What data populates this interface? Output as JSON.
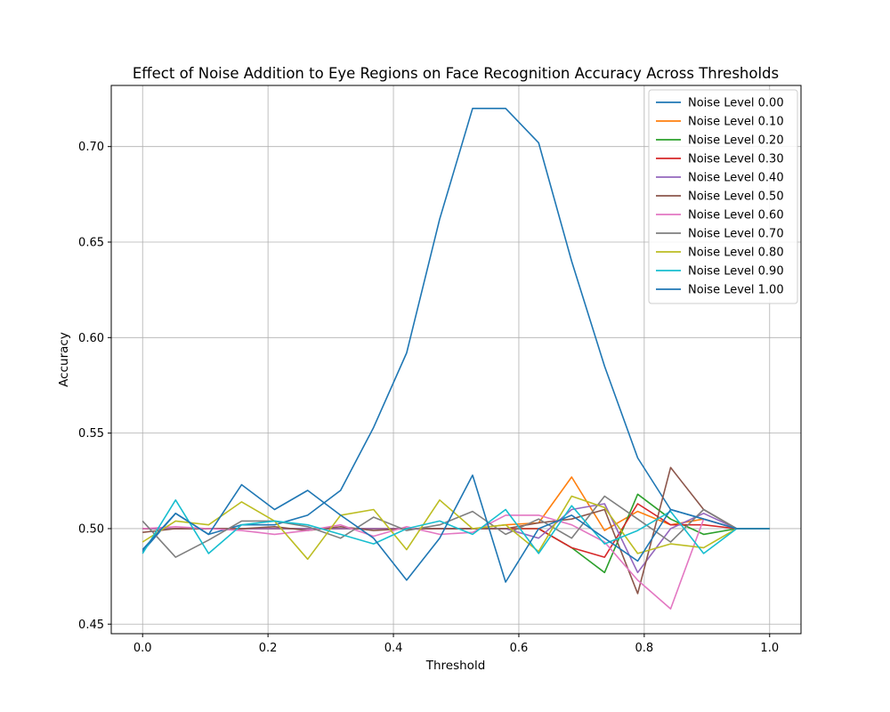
{
  "chart_data": {
    "type": "line",
    "title": "Effect of Noise Addition to Eye Regions on Face Recognition Accuracy Across Thresholds",
    "xlabel": "Threshold",
    "ylabel": "Accuracy",
    "xlim": [
      -0.05,
      1.05
    ],
    "ylim": [
      0.445,
      0.732
    ],
    "xticks": [
      0.0,
      0.2,
      0.4,
      0.6,
      0.8,
      1.0
    ],
    "xtick_labels": [
      "0.0",
      "0.2",
      "0.4",
      "0.6",
      "0.8",
      "1.0"
    ],
    "yticks": [
      0.45,
      0.5,
      0.55,
      0.6,
      0.65,
      0.7
    ],
    "ytick_labels": [
      "0.45",
      "0.50",
      "0.55",
      "0.60",
      "0.65",
      "0.70"
    ],
    "grid": true,
    "legend_position": "top-right",
    "x": [
      0.0,
      0.0526,
      0.1053,
      0.1579,
      0.2105,
      0.2632,
      0.3158,
      0.3684,
      0.4211,
      0.4737,
      0.5263,
      0.5789,
      0.6316,
      0.6842,
      0.7368,
      0.7895,
      0.8421,
      0.8947,
      0.9474,
      1.0
    ],
    "series": [
      {
        "name": "Noise Level 0.00",
        "color": "#1f77b4",
        "values": [
          0.488,
          0.508,
          0.497,
          0.502,
          0.502,
          0.507,
          0.52,
          0.553,
          0.592,
          0.662,
          0.72,
          0.72,
          0.702,
          0.64,
          0.585,
          0.537,
          0.51,
          0.505,
          0.5,
          0.5
        ]
      },
      {
        "name": "Noise Level 0.10",
        "color": "#ff7f0e",
        "values": [
          0.5,
          0.5,
          0.5,
          0.5,
          0.5,
          0.5,
          0.5,
          0.5,
          0.5,
          0.5,
          0.5,
          0.502,
          0.503,
          0.527,
          0.499,
          0.509,
          0.502,
          0.505,
          0.5,
          0.5
        ]
      },
      {
        "name": "Noise Level 0.20",
        "color": "#2ca02c",
        "values": [
          0.5,
          0.5,
          0.5,
          0.5,
          0.5,
          0.5,
          0.5,
          0.5,
          0.5,
          0.5,
          0.5,
          0.5,
          0.5,
          0.49,
          0.477,
          0.518,
          0.505,
          0.497,
          0.5,
          0.5
        ]
      },
      {
        "name": "Noise Level 0.30",
        "color": "#d62728",
        "values": [
          0.5,
          0.5,
          0.5,
          0.5,
          0.5,
          0.5,
          0.5,
          0.5,
          0.5,
          0.5,
          0.5,
          0.5,
          0.5,
          0.49,
          0.485,
          0.513,
          0.502,
          0.502,
          0.5,
          0.5
        ]
      },
      {
        "name": "Noise Level 0.40",
        "color": "#9467bd",
        "values": [
          0.5,
          0.5,
          0.5,
          0.5,
          0.5,
          0.5,
          0.5,
          0.5,
          0.5,
          0.5,
          0.5,
          0.5,
          0.495,
          0.51,
          0.513,
          0.477,
          0.5,
          0.508,
          0.5,
          0.5
        ]
      },
      {
        "name": "Noise Level 0.50",
        "color": "#8c564b",
        "values": [
          0.498,
          0.5,
          0.5,
          0.5,
          0.501,
          0.499,
          0.501,
          0.499,
          0.5,
          0.5,
          0.5,
          0.5,
          0.503,
          0.505,
          0.51,
          0.466,
          0.532,
          0.51,
          0.5,
          0.5
        ]
      },
      {
        "name": "Noise Level 0.60",
        "color": "#e377c2",
        "values": [
          0.5,
          0.501,
          0.5,
          0.499,
          0.497,
          0.499,
          0.502,
          0.496,
          0.501,
          0.497,
          0.498,
          0.507,
          0.507,
          0.502,
          0.493,
          0.473,
          0.458,
          0.505,
          0.5,
          0.5
        ]
      },
      {
        "name": "Noise Level 0.70",
        "color": "#7f7f7f",
        "values": [
          0.504,
          0.485,
          0.494,
          0.504,
          0.504,
          0.501,
          0.495,
          0.506,
          0.499,
          0.502,
          0.509,
          0.497,
          0.505,
          0.495,
          0.517,
          0.505,
          0.493,
          0.51,
          0.5,
          0.5
        ]
      },
      {
        "name": "Noise Level 0.80",
        "color": "#bcbd22",
        "values": [
          0.493,
          0.504,
          0.502,
          0.514,
          0.504,
          0.484,
          0.507,
          0.51,
          0.489,
          0.515,
          0.5,
          0.502,
          0.488,
          0.517,
          0.511,
          0.487,
          0.492,
          0.49,
          0.5,
          0.5
        ]
      },
      {
        "name": "Noise Level 0.90",
        "color": "#17becf",
        "values": [
          0.487,
          0.515,
          0.487,
          0.502,
          0.504,
          0.502,
          0.497,
          0.492,
          0.5,
          0.504,
          0.497,
          0.51,
          0.487,
          0.512,
          0.492,
          0.499,
          0.509,
          0.487,
          0.5,
          0.5
        ]
      },
      {
        "name": "Noise Level 1.00",
        "color": "#1f77b4",
        "values": [
          0.489,
          0.508,
          0.497,
          0.523,
          0.51,
          0.52,
          0.507,
          0.495,
          0.473,
          0.495,
          0.528,
          0.472,
          0.5,
          0.507,
          0.495,
          0.483,
          0.51,
          0.505,
          0.5,
          0.5
        ]
      }
    ]
  }
}
